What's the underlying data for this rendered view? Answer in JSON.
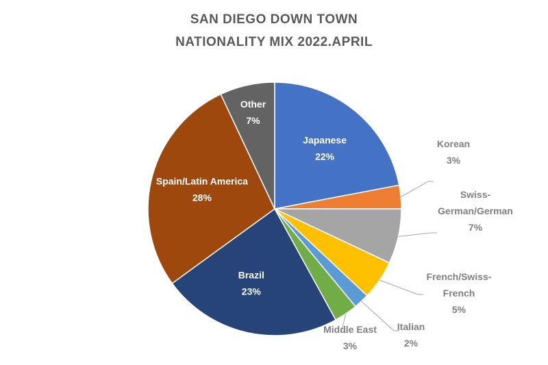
{
  "chart_data": {
    "type": "pie",
    "title_lines": [
      "SAN DIEGO DOWN TOWN",
      "NATIONALITY MIX 2022.APRIL"
    ],
    "slices": [
      {
        "name": "Japanese",
        "value": 22,
        "label": "22%",
        "color": "#4472C4",
        "label_lines": [
          "Japanese"
        ]
      },
      {
        "name": "Korean",
        "value": 3,
        "label": "3%",
        "color": "#ED7D31",
        "label_lines": [
          "Korean"
        ]
      },
      {
        "name": "Swiss-German/German",
        "value": 7,
        "label": "7%",
        "color": "#A5A5A5",
        "label_lines": [
          "Swiss-",
          "German/German"
        ]
      },
      {
        "name": "French/Swiss-French",
        "value": 5,
        "label": "5%",
        "color": "#FFC000",
        "label_lines": [
          "French/Swiss-",
          "French"
        ]
      },
      {
        "name": "Italian",
        "value": 2,
        "label": "2%",
        "color": "#5B9BD5",
        "label_lines": [
          "Italian"
        ]
      },
      {
        "name": "Middle East",
        "value": 3,
        "label": "3%",
        "color": "#70AD47",
        "label_lines": [
          "Middle East"
        ]
      },
      {
        "name": "Brazil",
        "value": 23,
        "label": "23%",
        "color": "#264478",
        "label_lines": [
          "Brazil"
        ]
      },
      {
        "name": "Spain/Latin America",
        "value": 28,
        "label": "28%",
        "color": "#9E480E",
        "label_lines": [
          "Spain/Latin America"
        ]
      },
      {
        "name": "Other",
        "value": 7,
        "label": "7%",
        "color": "#636363",
        "label_lines": [
          "Other"
        ]
      }
    ]
  }
}
